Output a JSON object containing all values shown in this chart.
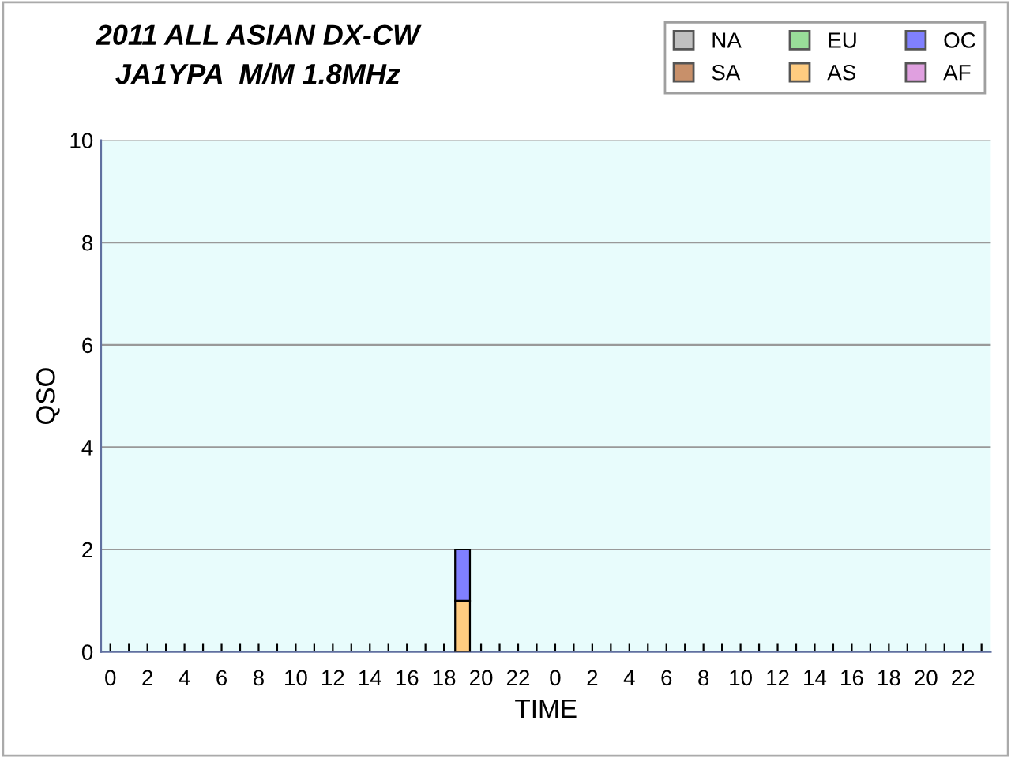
{
  "chart_data": {
    "type": "bar",
    "title": "2011 ALL ASIAN DX-CW\nJA1YPA  M/M 1.8MHz",
    "xlabel": "TIME",
    "ylabel": "QSO",
    "categories": [
      "0",
      null,
      "2",
      null,
      "4",
      null,
      "6",
      null,
      "8",
      null,
      "10",
      null,
      "12",
      null,
      "14",
      null,
      "16",
      null,
      "18",
      null,
      "20",
      null,
      "22",
      null,
      "0",
      null,
      "2",
      null,
      "4",
      null,
      "6",
      null,
      "8",
      null,
      "10",
      null,
      "12",
      null,
      "14",
      null,
      "16",
      null,
      "18",
      null,
      "20",
      null,
      "22",
      null
    ],
    "stacked": true,
    "ylim": [
      0,
      10
    ],
    "yticks": [
      0,
      2,
      4,
      6,
      8,
      10
    ],
    "grid": "y",
    "legend": "top right",
    "series": [
      {
        "name": "NA",
        "color": "#c0c0c0",
        "values": [
          0,
          0,
          0,
          0,
          0,
          0,
          0,
          0,
          0,
          0,
          0,
          0,
          0,
          0,
          0,
          0,
          0,
          0,
          0,
          0,
          0,
          0,
          0,
          0,
          0,
          0,
          0,
          0,
          0,
          0,
          0,
          0,
          0,
          0,
          0,
          0,
          0,
          0,
          0,
          0,
          0,
          0,
          0,
          0,
          0,
          0,
          0,
          0
        ]
      },
      {
        "name": "SA",
        "color": "#c8906a",
        "values": [
          0,
          0,
          0,
          0,
          0,
          0,
          0,
          0,
          0,
          0,
          0,
          0,
          0,
          0,
          0,
          0,
          0,
          0,
          0,
          0,
          0,
          0,
          0,
          0,
          0,
          0,
          0,
          0,
          0,
          0,
          0,
          0,
          0,
          0,
          0,
          0,
          0,
          0,
          0,
          0,
          0,
          0,
          0,
          0,
          0,
          0,
          0,
          0
        ]
      },
      {
        "name": "EU",
        "color": "#99dd99",
        "values": [
          0,
          0,
          0,
          0,
          0,
          0,
          0,
          0,
          0,
          0,
          0,
          0,
          0,
          0,
          0,
          0,
          0,
          0,
          0,
          0,
          0,
          0,
          0,
          0,
          0,
          0,
          0,
          0,
          0,
          0,
          0,
          0,
          0,
          0,
          0,
          0,
          0,
          0,
          0,
          0,
          0,
          0,
          0,
          0,
          0,
          0,
          0,
          0
        ]
      },
      {
        "name": "AS",
        "color": "#ffcc80",
        "values": [
          0,
          0,
          0,
          0,
          0,
          0,
          0,
          0,
          0,
          0,
          0,
          0,
          0,
          0,
          0,
          0,
          0,
          0,
          0,
          1,
          0,
          0,
          0,
          0,
          0,
          0,
          0,
          0,
          0,
          0,
          0,
          0,
          0,
          0,
          0,
          0,
          0,
          0,
          0,
          0,
          0,
          0,
          0,
          0,
          0,
          0,
          0,
          0
        ]
      },
      {
        "name": "OC",
        "color": "#8080ff",
        "values": [
          0,
          0,
          0,
          0,
          0,
          0,
          0,
          0,
          0,
          0,
          0,
          0,
          0,
          0,
          0,
          0,
          0,
          0,
          0,
          1,
          0,
          0,
          0,
          0,
          0,
          0,
          0,
          0,
          0,
          0,
          0,
          0,
          0,
          0,
          0,
          0,
          0,
          0,
          0,
          0,
          0,
          0,
          0,
          0,
          0,
          0,
          0,
          0
        ]
      },
      {
        "name": "AF",
        "color": "#e0a0e0",
        "values": [
          0,
          0,
          0,
          0,
          0,
          0,
          0,
          0,
          0,
          0,
          0,
          0,
          0,
          0,
          0,
          0,
          0,
          0,
          0,
          0,
          0,
          0,
          0,
          0,
          0,
          0,
          0,
          0,
          0,
          0,
          0,
          0,
          0,
          0,
          0,
          0,
          0,
          0,
          0,
          0,
          0,
          0,
          0,
          0,
          0,
          0,
          0,
          0
        ]
      }
    ]
  }
}
